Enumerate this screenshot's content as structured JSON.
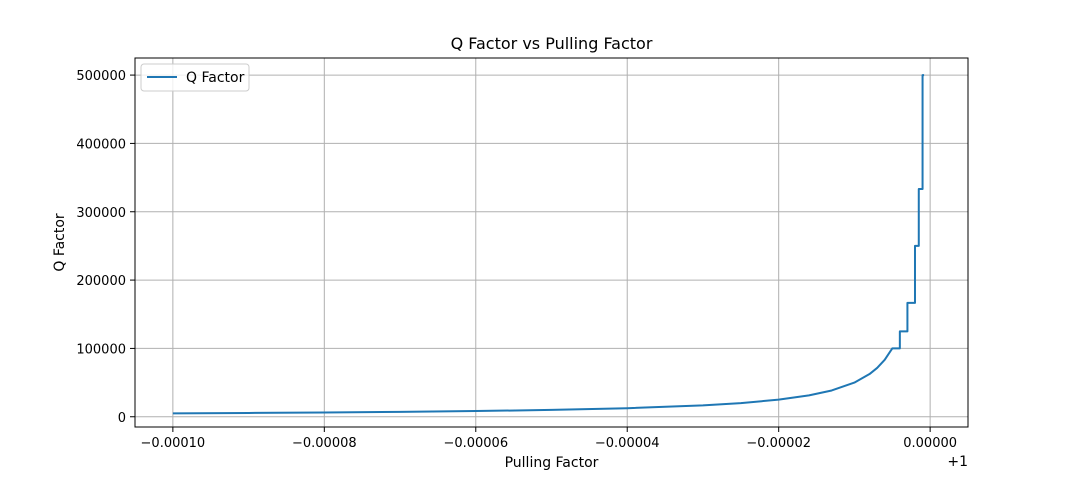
{
  "chart_data": {
    "type": "line",
    "title": "Q Factor vs Pulling Factor",
    "xlabel": "Pulling Factor",
    "ylabel": "Q Factor",
    "x_offset_label": "+1",
    "xlim": [
      -0.000105,
      5e-06
    ],
    "ylim": [
      -15000,
      525000
    ],
    "x_ticks": [
      -0.0001,
      -8e-05,
      -6e-05,
      -4e-05,
      -2e-05,
      0.0
    ],
    "x_tick_labels": [
      "−0.00010",
      "−0.00008",
      "−0.00006",
      "−0.00004",
      "−0.00002",
      "0.00000"
    ],
    "y_ticks": [
      0,
      100000,
      200000,
      300000,
      400000,
      500000
    ],
    "y_tick_labels": [
      "0",
      "100000",
      "200000",
      "300000",
      "400000",
      "500000"
    ],
    "grid": true,
    "legend": {
      "position": "top-left",
      "entries": [
        "Q Factor"
      ]
    },
    "series": [
      {
        "name": "Q Factor",
        "color": "#1f77b4",
        "x": [
          -0.0001,
          -9e-05,
          -8e-05,
          -7e-05,
          -6e-05,
          -5e-05,
          -4e-05,
          -3e-05,
          -2.5e-05,
          -2e-05,
          -1.6e-05,
          -1.3e-05,
          -1e-05,
          -8e-06,
          -7e-06,
          -6e-06,
          -5e-06,
          -4e-06,
          -4e-06,
          -3e-06,
          -3e-06,
          -2e-06,
          -2e-06,
          -1.5e-06,
          -1.5e-06,
          -1e-06,
          -1e-06,
          -8e-07
        ],
        "y": [
          5000,
          5560,
          6250,
          7140,
          8330,
          10000,
          12500,
          16670,
          20000,
          25000,
          31250,
          38460,
          50000,
          62500,
          71430,
          83330,
          100000,
          100000,
          125000,
          125000,
          166670,
          166670,
          250000,
          250000,
          333330,
          333330,
          500000,
          500000
        ]
      }
    ]
  }
}
